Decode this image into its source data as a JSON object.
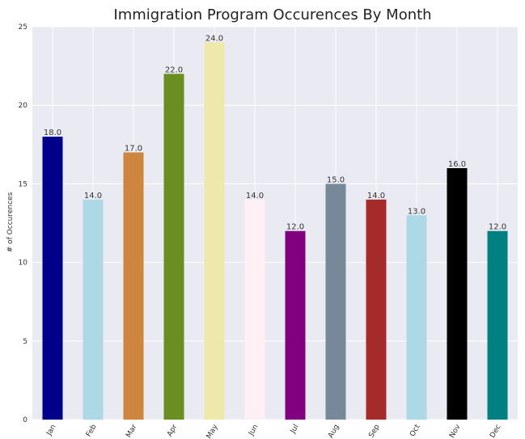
{
  "chart_data": {
    "type": "bar",
    "title": "Immigration Program Occurences By Month",
    "xlabel": "",
    "ylabel": "# of Occurences",
    "categories": [
      "Jan",
      "Feb",
      "Mar",
      "Apr",
      "May",
      "Jun",
      "Jul",
      "Aug",
      "Sep",
      "Oct",
      "Nov",
      "Dec"
    ],
    "values": [
      18,
      14,
      17,
      22,
      24,
      14,
      12,
      15,
      14,
      13,
      16,
      12
    ],
    "data_labels": [
      "18.0",
      "14.0",
      "17.0",
      "22.0",
      "24.0",
      "14.0",
      "12.0",
      "15.0",
      "14.0",
      "13.0",
      "16.0",
      "12.0"
    ],
    "colors": [
      "#00008b",
      "#add8e6",
      "#cd853f",
      "#6b8e23",
      "#eee8aa",
      "#fff0f5",
      "#800080",
      "#778899",
      "#a52a2a",
      "#add8e6",
      "#000000",
      "#008080"
    ],
    "ylim": [
      0,
      25
    ],
    "yticks": [
      "0",
      "5",
      "10",
      "15",
      "20",
      "25"
    ],
    "grid": true,
    "plot_background": "#eaeaf2"
  }
}
